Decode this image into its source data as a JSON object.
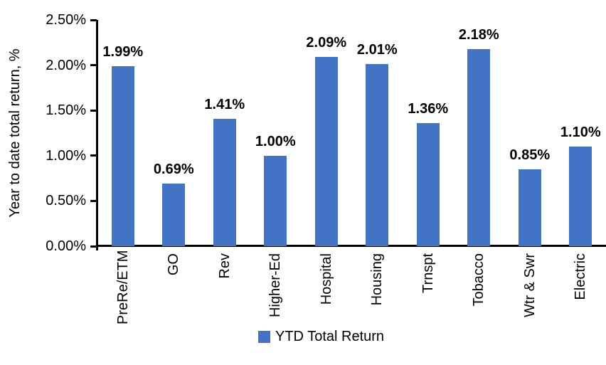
{
  "chart_data": {
    "type": "bar",
    "title": "",
    "categories": [
      "PreRe/ETM",
      "GO",
      "Rev",
      "Higher-Ed",
      "Hospital",
      "Housing",
      "Trnspt",
      "Tobacco",
      "Wtr & Swr",
      "Electric"
    ],
    "series": [
      {
        "name": "YTD Total Return",
        "values": [
          1.99,
          0.69,
          1.41,
          1.0,
          2.09,
          2.01,
          1.36,
          2.18,
          0.85,
          1.1
        ]
      }
    ],
    "data_labels": [
      "1.99%",
      "0.69%",
      "1.41%",
      "1.00%",
      "2.09%",
      "2.01%",
      "1.36%",
      "2.18%",
      "0.85%",
      "1.10%"
    ],
    "xlabel": "",
    "ylabel": "Year to date total return, %",
    "ylim": [
      0,
      2.5
    ],
    "yticks": [
      {
        "value": 0.0,
        "label": "0.00%"
      },
      {
        "value": 0.5,
        "label": "0.50%"
      },
      {
        "value": 1.0,
        "label": "1.00%"
      },
      {
        "value": 1.5,
        "label": "1.50%"
      },
      {
        "value": 2.0,
        "label": "2.00%"
      },
      {
        "value": 2.5,
        "label": "2.50%"
      }
    ],
    "legend": {
      "label": "YTD Total Return",
      "position": "bottom-center"
    },
    "colors": {
      "bar": "#4472C4",
      "axis": "#000000",
      "text": "#000000",
      "background": "#FFFFFF"
    },
    "grid": false
  }
}
